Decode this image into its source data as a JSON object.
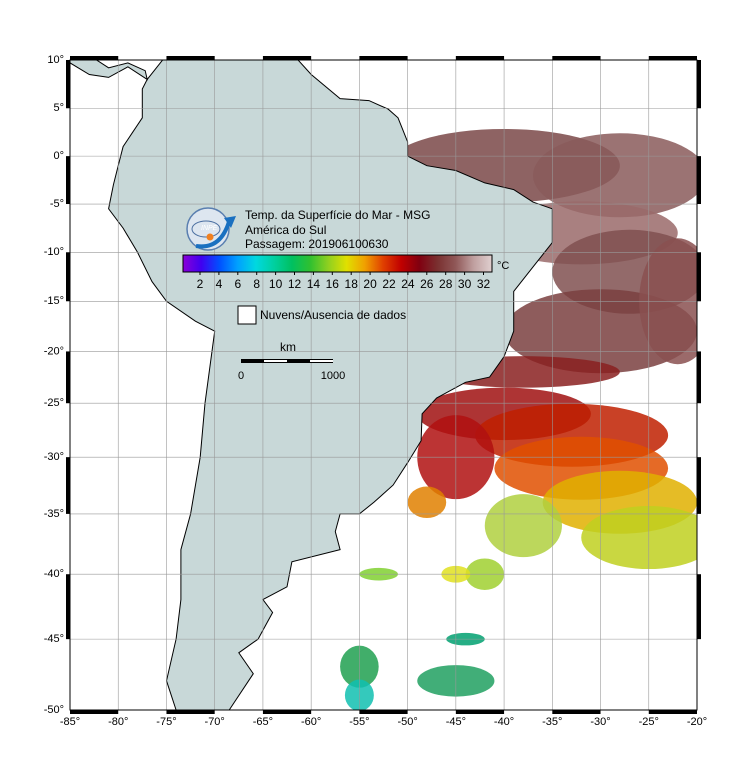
{
  "map": {
    "title_lines": [
      "Temp. da Superfície do Mar - MSG",
      "América do Sul",
      "Passagem: 201906100630"
    ],
    "logo": "INPE",
    "colorbar": {
      "unit": "°C",
      "ticks": [
        2,
        4,
        6,
        8,
        10,
        12,
        14,
        16,
        18,
        20,
        22,
        24,
        26,
        28,
        30,
        32
      ],
      "colors": [
        "#8a00d8",
        "#4000f0",
        "#0050ff",
        "#00a0ff",
        "#00d8e0",
        "#00d0a0",
        "#00c060",
        "#30c030",
        "#90d020",
        "#e0e000",
        "#f0a000",
        "#e04000",
        "#c00000",
        "#800010",
        "#7a3030",
        "#905858",
        "#c0a0a0",
        "#e0d0d0"
      ]
    },
    "legend": "Nuvens/Ausencia de dados",
    "scale": {
      "unit": "km",
      "labels": [
        "0",
        "1000"
      ]
    },
    "lat_ticks": [
      {
        "value": 10,
        "label": "10°"
      },
      {
        "value": 5,
        "label": "5°"
      },
      {
        "value": 0,
        "label": "0°"
      },
      {
        "value": -5,
        "label": "-5°"
      },
      {
        "value": -10,
        "label": "-10°"
      },
      {
        "value": -15,
        "label": "-15°"
      },
      {
        "value": -20,
        "label": "-20°"
      },
      {
        "value": -25,
        "label": "-25°"
      },
      {
        "value": -30,
        "label": "-30°"
      },
      {
        "value": -35,
        "label": "-35°"
      },
      {
        "value": -40,
        "label": "-40°"
      },
      {
        "value": -45,
        "label": "-45°"
      },
      {
        "value": -50,
        "label": "-50°"
      }
    ],
    "lon_ticks": [
      {
        "value": -85,
        "label": "-85°"
      },
      {
        "value": -80,
        "label": "-80°"
      },
      {
        "value": -75,
        "label": "-75°"
      },
      {
        "value": -70,
        "label": "-70°"
      },
      {
        "value": -65,
        "label": "-65°"
      },
      {
        "value": -60,
        "label": "-60°"
      },
      {
        "value": -55,
        "label": "-55°"
      },
      {
        "value": -50,
        "label": "-50°"
      },
      {
        "value": -45,
        "label": "-45°"
      },
      {
        "value": -40,
        "label": "-40°"
      },
      {
        "value": -35,
        "label": "-35°"
      },
      {
        "value": -30,
        "label": "-30°"
      },
      {
        "value": -25,
        "label": "-25°"
      },
      {
        "value": -20,
        "label": "-20°"
      }
    ]
  }
}
